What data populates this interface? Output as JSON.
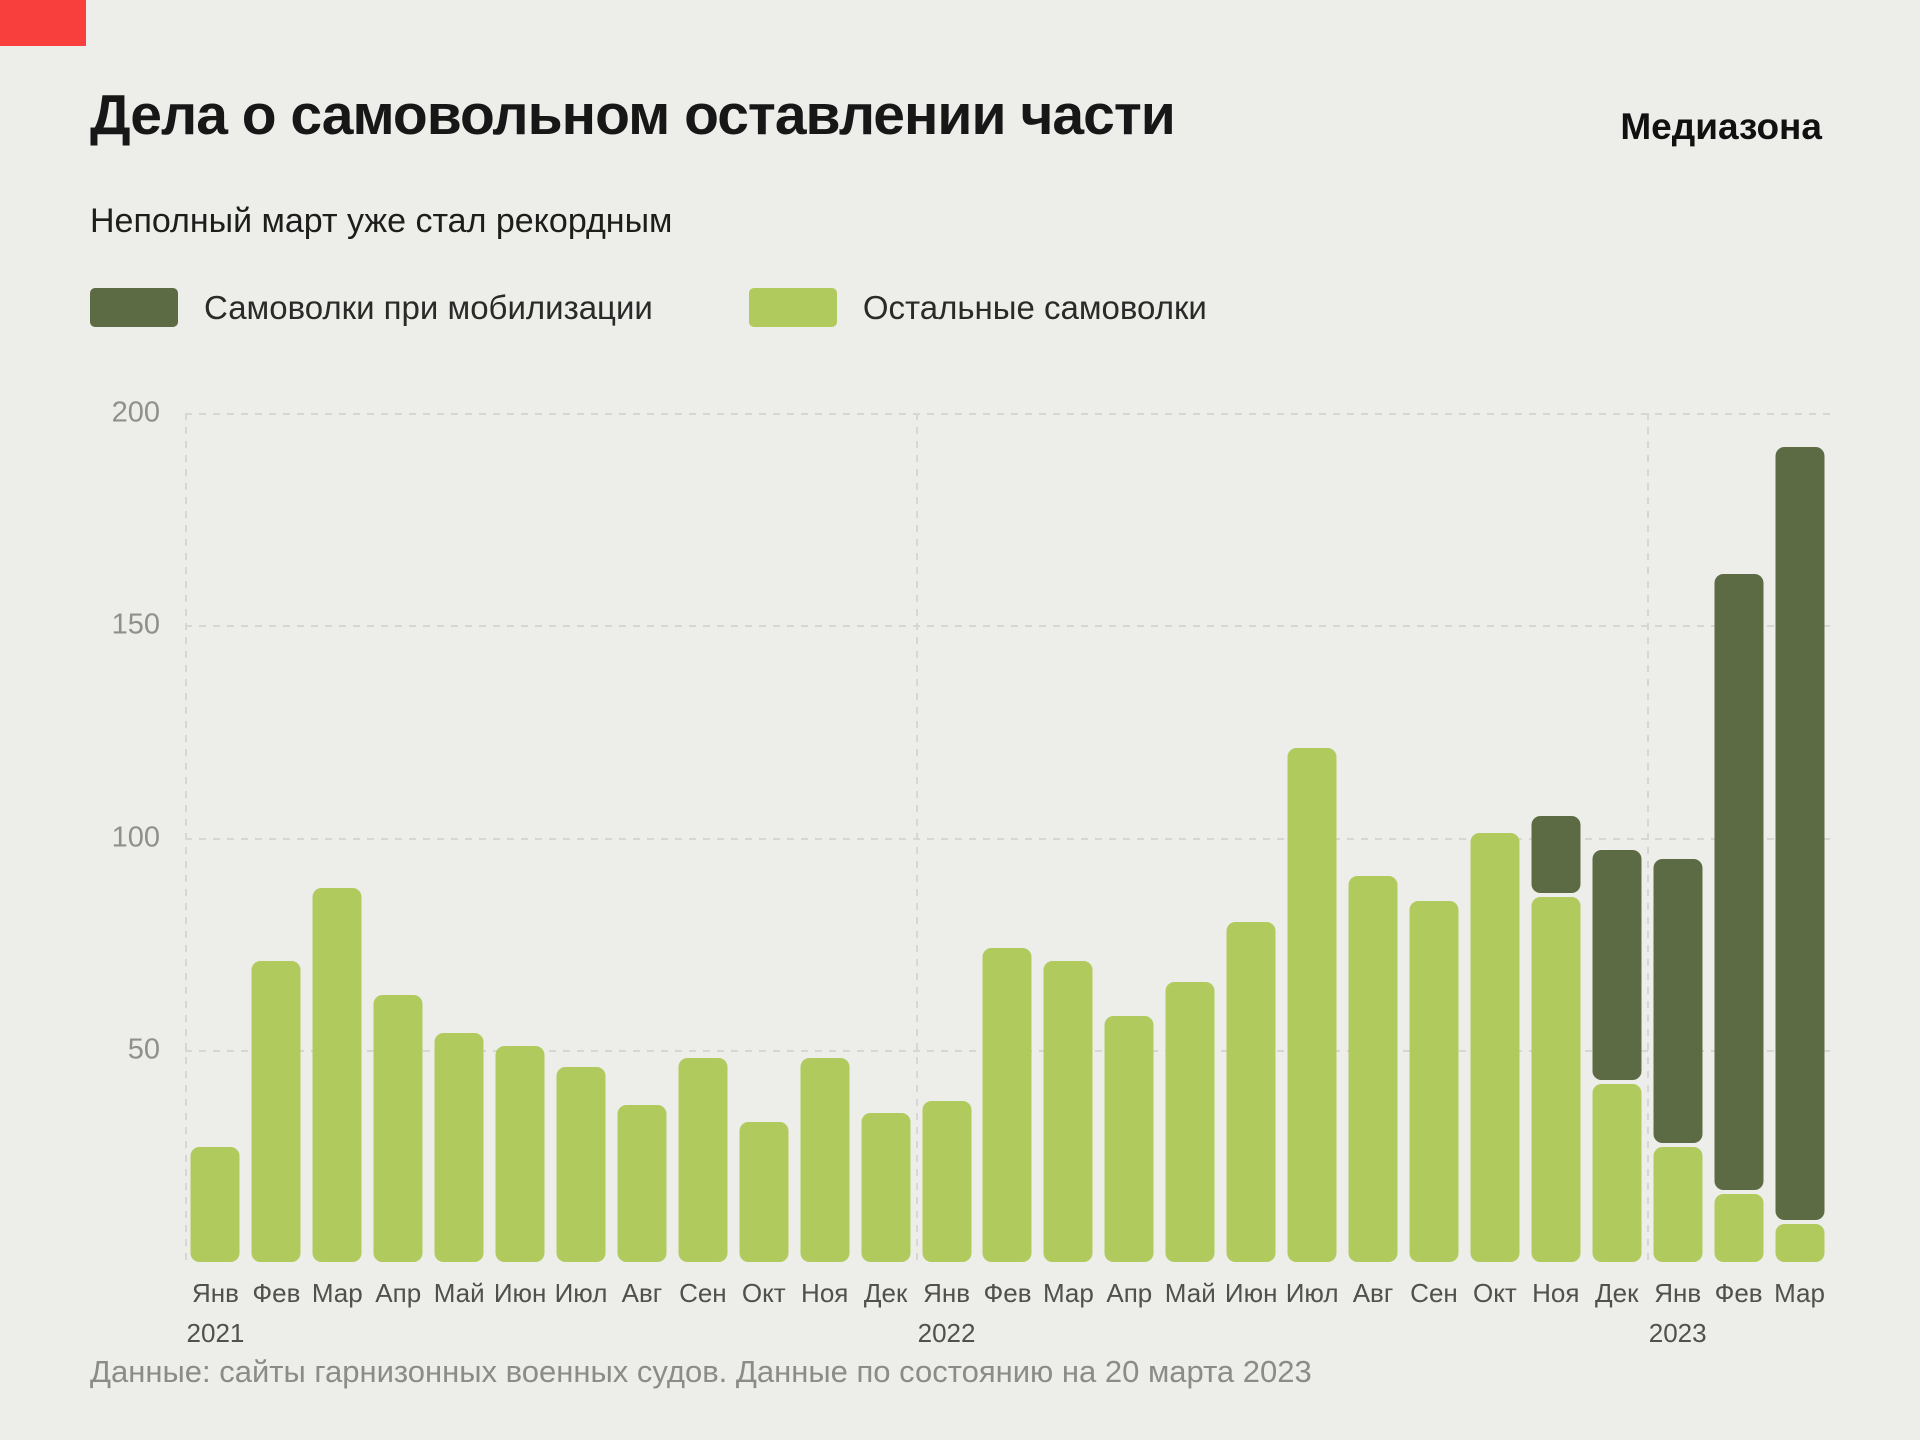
{
  "branding": {
    "logo": "Медиазона",
    "flag_color": "#f93e3e"
  },
  "header": {
    "title": "Дела о самовольном оставлении части",
    "subtitle": "Неполный март уже стал рекордным"
  },
  "legend": [
    {
      "label": "Самоволки при мобилизации",
      "color": "#5d6b45"
    },
    {
      "label": "Остальные самоволки",
      "color": "#b1ca5e"
    }
  ],
  "footer": {
    "source": "Данные: сайты гарнизонных военных судов. Данные по состоянию на 20 марта 2023"
  },
  "chart_data": {
    "type": "bar",
    "stacked": true,
    "title": "Дела о самовольном оставлении части",
    "subtitle": "Неполный март уже стал рекордным",
    "xlabel": "",
    "ylabel": "",
    "ylim": [
      0,
      200
    ],
    "yticks": [
      50,
      100,
      150,
      200
    ],
    "grid": "horizontal dashed gridlines, dashed vertical separators at year starts",
    "legend_position": "top-left",
    "categories": [
      "Янв",
      "Фев",
      "Мар",
      "Апр",
      "Май",
      "Июн",
      "Июл",
      "Авг",
      "Сен",
      "Окт",
      "Ноя",
      "Дек",
      "Янв",
      "Фев",
      "Мар",
      "Апр",
      "Май",
      "Июн",
      "Июл",
      "Авг",
      "Сен",
      "Окт",
      "Ноя",
      "Дек",
      "Янв",
      "Фев",
      "Мар"
    ],
    "year_labels": [
      {
        "index": 0,
        "label": "2021"
      },
      {
        "index": 12,
        "label": "2022"
      },
      {
        "index": 24,
        "label": "2023"
      }
    ],
    "series": [
      {
        "name": "Остальные самоволки",
        "color": "#b1ca5e",
        "values": [
          27,
          71,
          88,
          63,
          54,
          51,
          46,
          37,
          48,
          33,
          48,
          35,
          38,
          74,
          71,
          58,
          66,
          80,
          121,
          91,
          85,
          101,
          86,
          42,
          27,
          16,
          9
        ]
      },
      {
        "name": "Самоволки при мобилизации",
        "color": "#5d6b45",
        "values": [
          0,
          0,
          0,
          0,
          0,
          0,
          0,
          0,
          0,
          0,
          0,
          0,
          0,
          0,
          0,
          0,
          0,
          0,
          0,
          0,
          0,
          0,
          19,
          55,
          68,
          146,
          183
        ]
      }
    ]
  }
}
